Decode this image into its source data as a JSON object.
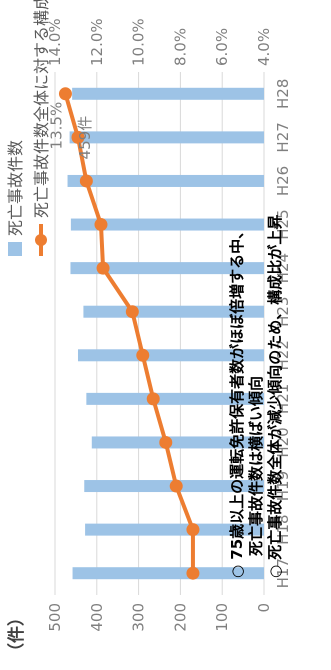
{
  "chart_data": {
    "type": "bar",
    "categories": [
      "H17",
      "H18",
      "H19",
      "H20",
      "H21",
      "H22",
      "H23",
      "H24",
      "H25",
      "H26",
      "H27",
      "H28"
    ],
    "series": [
      {
        "name": "死亡事故件数",
        "kind": "bar",
        "axis": "left",
        "color": "#9dc3e6",
        "values": [
          458,
          428,
          430,
          412,
          425,
          445,
          432,
          463,
          462,
          470,
          465,
          459
        ]
      },
      {
        "name": "死亡事故件数全体に対する構成比",
        "kind": "line",
        "axis": "right",
        "color": "#ed7d31",
        "values": [
          7.4,
          7.4,
          8.2,
          8.7,
          9.3,
          9.8,
          10.3,
          11.7,
          11.8,
          12.5,
          12.9,
          13.5
        ]
      }
    ],
    "left_axis": {
      "unit_label": "（件）",
      "ylim": [
        0,
        500
      ],
      "ticks": [
        "0",
        "100",
        "200",
        "300",
        "400",
        "500"
      ]
    },
    "right_axis": {
      "ylim": [
        4.0,
        14.0
      ],
      "ticks": [
        "4.0%",
        "6.0%",
        "8.0%",
        "10.0%",
        "12.0%",
        "14.0%"
      ]
    },
    "data_labels": {
      "last_count": "459件",
      "last_ratio": "13.5%"
    },
    "legend": {
      "position": "top",
      "items": [
        "死亡事故件数",
        "死亡事故件数全体に対する構成比"
      ]
    },
    "annotations": [
      "○ 75歳以上の運転免許保有者数がほぼ倍増する中、",
      "死亡事故件数は横ばい傾向",
      "○ 死亡事故件数全体が減少傾向のため、構成比が上昇"
    ],
    "grid": true,
    "grid_color": "#d9d9d9",
    "axis_text_color": "#7f7f7f"
  }
}
